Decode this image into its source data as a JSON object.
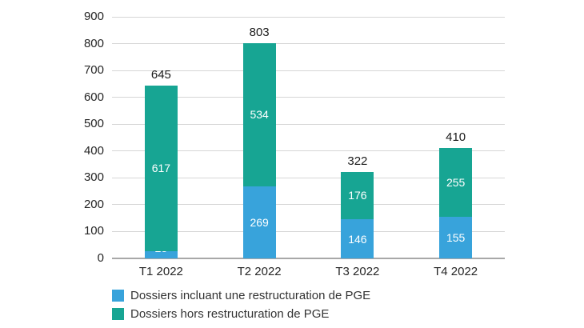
{
  "chart_data": {
    "type": "bar",
    "stacked": true,
    "title": "",
    "xlabel": "",
    "ylabel": "",
    "categories": [
      "T1 2022",
      "T2 2022",
      "T3 2022",
      "T4 2022"
    ],
    "series": [
      {
        "name": "Dossiers incluant une restructuration de PGE",
        "color": "#38a3db",
        "values": [
          28,
          269,
          146,
          155
        ]
      },
      {
        "name": "Dossiers hors restructuration de PGE",
        "color": "#17a593",
        "values": [
          617,
          534,
          176,
          255
        ]
      }
    ],
    "totals": [
      645,
      803,
      322,
      410
    ],
    "ylim": [
      0,
      900
    ],
    "yticks": [
      0,
      100,
      200,
      300,
      400,
      500,
      600,
      700,
      800,
      900
    ],
    "grid": true,
    "legend_position": "bottom-left"
  },
  "colors": {
    "background": "#ffffff",
    "grid": "#d6d6d6",
    "axis": "#a8a8a8",
    "tick_text": "#262626",
    "total_text": "#1a1a1a",
    "bar_label_text": "#ffffff"
  }
}
